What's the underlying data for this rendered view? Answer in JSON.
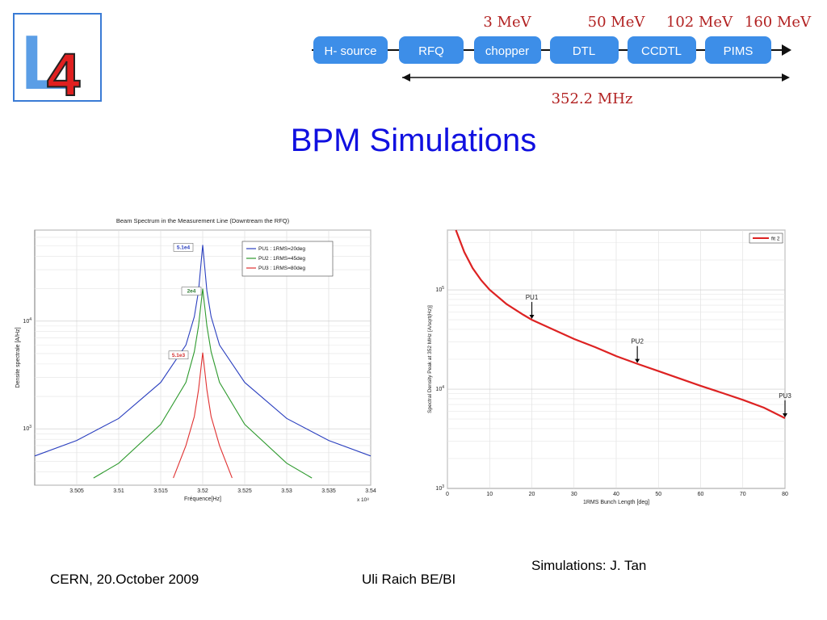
{
  "logo": {
    "letter": "L",
    "digit": "4"
  },
  "chain": {
    "boxes": [
      "H- source",
      "RFQ",
      "chopper",
      "DTL",
      "CCDTL",
      "PIMS"
    ],
    "box_color": "#3d8ee8",
    "energies": [
      "3 MeV",
      "50 MeV",
      "102 MeV",
      "160 MeV"
    ],
    "frequency": "352.2 MHz",
    "label_color": "#b22222"
  },
  "title": "BPM Simulations",
  "chart_data": [
    {
      "type": "line",
      "title": "Beam Spectrum in the Measurement Line (Downtream the RFQ)",
      "xlabel": "Fréquence[Hz]",
      "ylabel": "Densite spectrale [A/Hz]",
      "x_multiplier": "x 10⁸",
      "y_scale": "log",
      "xlim": [
        3.5,
        3.54
      ],
      "ylim": [
        300,
        70000
      ],
      "x_ticks": [
        "3.505",
        "3.51",
        "3.515",
        "3.52",
        "3.525",
        "3.53",
        "3.535",
        "3.54"
      ],
      "y_ticks": [
        {
          "value": 1000,
          "base": "10",
          "exp": "3"
        },
        {
          "value": 10000,
          "base": "10",
          "exp": "4"
        }
      ],
      "grid": true,
      "legend_position": "top-right",
      "series": [
        {
          "name": "PU1 : 1RMS=20deg",
          "color": "#2a3fbf",
          "peak_x": 3.52,
          "peak_y": 51000,
          "label": "5.1e4",
          "label_color": "#2a3fbf",
          "x": [
            3.5,
            3.505,
            3.51,
            3.515,
            3.518,
            3.519,
            3.5195,
            3.52,
            3.5205,
            3.521,
            3.522,
            3.525,
            3.53,
            3.535,
            3.54
          ],
          "y": [
            560,
            780,
            1250,
            2700,
            6000,
            11000,
            19000,
            51000,
            19000,
            11000,
            6000,
            2700,
            1250,
            780,
            560
          ]
        },
        {
          "name": "PU2 : 1RMS=45deg",
          "color": "#2e9a2e",
          "peak_x": 3.52,
          "peak_y": 20000,
          "label": "2e4",
          "label_color": "#2e7d32",
          "x": [
            3.507,
            3.51,
            3.515,
            3.518,
            3.519,
            3.5195,
            3.52,
            3.5205,
            3.521,
            3.522,
            3.525,
            3.53,
            3.533
          ],
          "y": [
            350,
            480,
            1100,
            2700,
            5200,
            9000,
            20000,
            9000,
            5200,
            2700,
            1100,
            480,
            350
          ]
        },
        {
          "name": "PU3 : 1RMS=80deg",
          "color": "#e03030",
          "peak_x": 3.52,
          "peak_y": 5100,
          "label": "5.1e3",
          "label_color": "#d32f2f",
          "x": [
            3.5165,
            3.518,
            3.519,
            3.5195,
            3.52,
            3.5205,
            3.521,
            3.522,
            3.5235
          ],
          "y": [
            350,
            700,
            1300,
            2300,
            5100,
            2300,
            1300,
            700,
            350
          ]
        }
      ]
    },
    {
      "type": "line",
      "title": "",
      "xlabel": "1RMS Bunch Length [deg]",
      "ylabel": "Spectral Density Peak at 352 MHz  [A/sqrt(Hz)]",
      "y_scale": "log",
      "xlim": [
        0,
        80
      ],
      "ylim": [
        1000,
        400000
      ],
      "x_ticks": [
        "0",
        "10",
        "20",
        "30",
        "40",
        "50",
        "60",
        "70",
        "80"
      ],
      "y_ticks": [
        {
          "value": 1000,
          "base": "10",
          "exp": "3"
        },
        {
          "value": 10000,
          "base": "10",
          "exp": "4"
        },
        {
          "value": 100000,
          "base": "10",
          "exp": "5"
        }
      ],
      "grid": true,
      "legend_position": "top-right",
      "series": [
        {
          "name": "fit 2",
          "color": "#dd2222",
          "x": [
            2,
            4,
            6,
            8,
            10,
            14,
            18,
            20,
            25,
            30,
            35,
            40,
            45,
            50,
            55,
            60,
            65,
            70,
            75,
            80
          ],
          "y": [
            430000,
            240000,
            165000,
            125000,
            100000,
            72000,
            56000,
            50000,
            40000,
            32000,
            26500,
            21500,
            18000,
            15200,
            12800,
            10800,
            9200,
            7800,
            6500,
            5100
          ]
        }
      ],
      "annotations": [
        {
          "text": "PU1",
          "x": 20,
          "y": 50000
        },
        {
          "text": "PU2",
          "x": 45,
          "y": 18000
        },
        {
          "text": "PU3",
          "x": 80,
          "y": 5100
        }
      ]
    }
  ],
  "footer": {
    "left": "CERN, 20.October 2009",
    "center": "Uli Raich BE/BI",
    "right": "Simulations: J. Tan"
  }
}
